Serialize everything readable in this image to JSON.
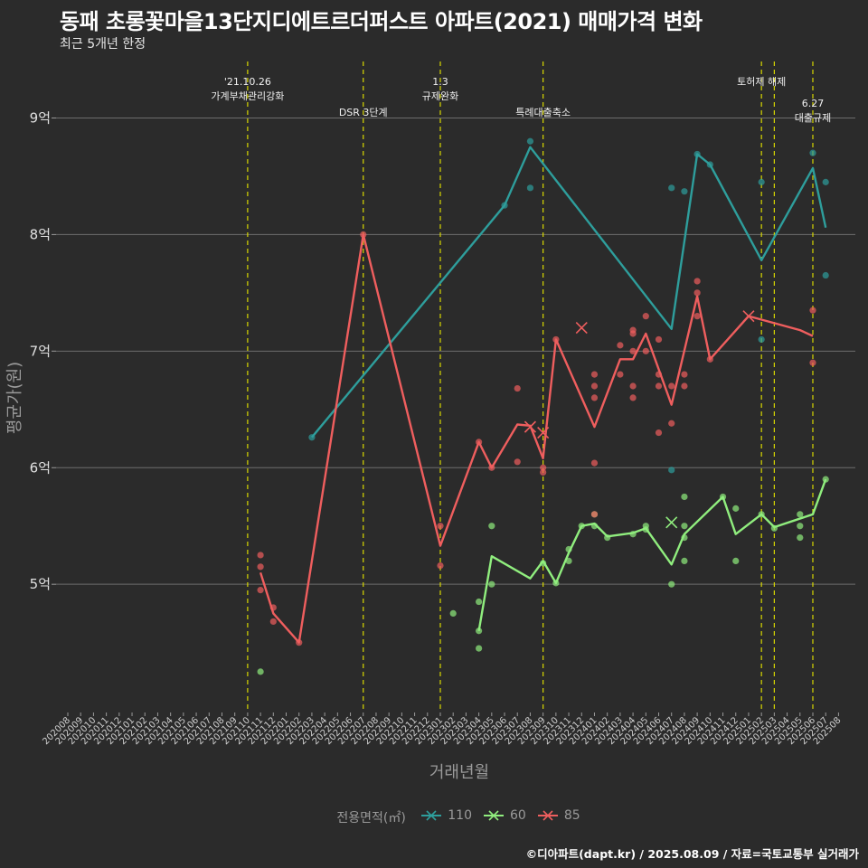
{
  "chart_data": {
    "type": "line",
    "title": "동패 초롱꽃마을13단지디에트르더퍼스트 아파트(2021) 매매가격 변화",
    "subtitle": "최근 5개년 한정",
    "xlabel": "거래년월",
    "ylabel": "평균가(원)",
    "ylim": [
      3.9,
      9.5
    ],
    "y_ticks": [
      5,
      6,
      7,
      8,
      9
    ],
    "y_tick_labels": [
      "5억",
      "6억",
      "7억",
      "8억",
      "9억"
    ],
    "grid": true,
    "x_categories": [
      "202008",
      "202009",
      "202010",
      "202011",
      "202012",
      "202101",
      "202102",
      "202103",
      "202104",
      "202105",
      "202106",
      "202107",
      "202108",
      "202109",
      "202110",
      "202111",
      "202112",
      "202201",
      "202202",
      "202203",
      "202204",
      "202205",
      "202206",
      "202207",
      "202208",
      "202209",
      "202210",
      "202211",
      "202212",
      "202301",
      "202302",
      "202303",
      "202304",
      "202305",
      "202306",
      "202307",
      "202308",
      "202309",
      "202310",
      "202311",
      "202312",
      "202401",
      "202402",
      "202403",
      "202404",
      "202405",
      "202406",
      "202407",
      "202408",
      "202409",
      "202410",
      "202411",
      "202412",
      "202501",
      "202502",
      "202503",
      "202504",
      "202505",
      "202506",
      "202507",
      "202508"
    ],
    "legend": {
      "title": "전용면적(㎡)",
      "position": "bottom"
    },
    "annotations": [
      {
        "x": "202110",
        "lines": [
          "'21.10.26",
          "가계부채관리강화"
        ],
        "row": 1
      },
      {
        "x": "202207",
        "lines": [
          "DSR 3단계"
        ],
        "row": 2
      },
      {
        "x": "202301",
        "lines": [
          "1.3",
          "규제완화"
        ],
        "row": 1
      },
      {
        "x": "202309",
        "lines": [
          "특례대출축소"
        ],
        "row": 2
      },
      {
        "x": "202502",
        "lines": [
          "토허제 해제"
        ],
        "row": 1
      },
      {
        "x": "202503",
        "lines": [],
        "row": 0
      },
      {
        "x": "202506",
        "lines": [
          "6.27",
          "대출규제"
        ],
        "row": 3
      }
    ],
    "series": [
      {
        "name": "110",
        "color": "#2e9e9c",
        "line": [
          [
            "202203",
            6.26
          ],
          [
            "202306",
            8.25
          ],
          [
            "202308",
            8.75
          ],
          [
            "202407",
            7.19
          ],
          [
            "202409",
            8.69
          ],
          [
            "202410",
            8.6
          ],
          [
            "202502",
            7.78
          ],
          [
            "202506",
            8.57
          ],
          [
            "202507",
            8.06
          ]
        ],
        "points": [
          [
            "202203",
            6.26
          ],
          [
            "202306",
            8.25
          ],
          [
            "202308",
            8.8
          ],
          [
            "202308",
            8.4
          ],
          [
            "202407",
            8.4
          ],
          [
            "202407",
            5.98
          ],
          [
            "202408",
            8.37
          ],
          [
            "202409",
            8.69
          ],
          [
            "202410",
            8.6
          ],
          [
            "202502",
            8.45
          ],
          [
            "202502",
            7.1
          ],
          [
            "202506",
            8.7
          ],
          [
            "202507",
            8.45
          ],
          [
            "202507",
            7.65
          ]
        ],
        "x_marks": []
      },
      {
        "name": "60",
        "color": "#90ee7e",
        "line": [
          [
            "202304",
            4.6
          ],
          [
            "202305",
            5.24
          ],
          [
            "202308",
            5.05
          ],
          [
            "202309",
            5.2
          ],
          [
            "202310",
            5.01
          ],
          [
            "202311",
            5.27
          ],
          [
            "202312",
            5.5
          ],
          [
            "202401",
            5.52
          ],
          [
            "202402",
            5.41
          ],
          [
            "202404",
            5.44
          ],
          [
            "202405",
            5.48
          ],
          [
            "202407",
            5.17
          ],
          [
            "202408",
            5.43
          ],
          [
            "202411",
            5.75
          ],
          [
            "202412",
            5.43
          ],
          [
            "202502",
            5.6
          ],
          [
            "202503",
            5.49
          ],
          [
            "202506",
            5.6
          ],
          [
            "202507",
            5.9
          ]
        ],
        "points": [
          [
            "202111",
            4.25
          ],
          [
            "202302",
            4.75
          ],
          [
            "202304",
            4.85
          ],
          [
            "202304",
            4.6
          ],
          [
            "202304",
            4.45
          ],
          [
            "202305",
            5.5
          ],
          [
            "202305",
            5.0
          ],
          [
            "202309",
            5.18
          ],
          [
            "202310",
            5.01
          ],
          [
            "202311",
            5.3
          ],
          [
            "202311",
            5.2
          ],
          [
            "202312",
            5.5
          ],
          [
            "202401",
            5.5
          ],
          [
            "202401",
            5.6
          ],
          [
            "202402",
            5.4
          ],
          [
            "202404",
            5.43
          ],
          [
            "202405",
            5.5
          ],
          [
            "202405",
            5.47
          ],
          [
            "202407",
            5.0
          ],
          [
            "202408",
            5.75
          ],
          [
            "202408",
            5.5
          ],
          [
            "202408",
            5.4
          ],
          [
            "202408",
            5.2
          ],
          [
            "202411",
            5.75
          ],
          [
            "202412",
            5.65
          ],
          [
            "202412",
            5.2
          ],
          [
            "202502",
            5.6
          ],
          [
            "202503",
            5.48
          ],
          [
            "202505",
            5.6
          ],
          [
            "202505",
            5.5
          ],
          [
            "202505",
            5.4
          ],
          [
            "202507",
            5.9
          ]
        ],
        "x_marks": [
          [
            "202407",
            5.53
          ]
        ]
      },
      {
        "name": "85",
        "color": "#ef5e5e",
        "line": [
          [
            "202111",
            5.1
          ],
          [
            "202112",
            4.75
          ],
          [
            "202202",
            4.5
          ],
          [
            "202207",
            8.0
          ],
          [
            "202301",
            5.33
          ],
          [
            "202304",
            6.22
          ],
          [
            "202305",
            6.0
          ],
          [
            "202307",
            6.37
          ],
          [
            "202308",
            6.36
          ],
          [
            "202309",
            6.08
          ],
          [
            "202310",
            7.1
          ],
          [
            "202401",
            6.35
          ],
          [
            "202403",
            6.93
          ],
          [
            "202404",
            6.93
          ],
          [
            "202405",
            7.15
          ],
          [
            "202407",
            6.54
          ],
          [
            "202409",
            7.47
          ],
          [
            "202410",
            6.93
          ],
          [
            "202501",
            7.3
          ],
          [
            "202505",
            7.18
          ],
          [
            "202506",
            7.13
          ]
        ],
        "points": [
          [
            "202111",
            5.25
          ],
          [
            "202111",
            5.15
          ],
          [
            "202111",
            4.95
          ],
          [
            "202112",
            4.8
          ],
          [
            "202112",
            4.68
          ],
          [
            "202202",
            4.5
          ],
          [
            "202207",
            8.0
          ],
          [
            "202301",
            5.5
          ],
          [
            "202301",
            5.16
          ],
          [
            "202304",
            6.22
          ],
          [
            "202305",
            6.0
          ],
          [
            "202307",
            6.68
          ],
          [
            "202307",
            6.05
          ],
          [
            "202309",
            6.0
          ],
          [
            "202309",
            5.96
          ],
          [
            "202310",
            7.1
          ],
          [
            "202401",
            6.8
          ],
          [
            "202401",
            6.7
          ],
          [
            "202401",
            6.6
          ],
          [
            "202401",
            6.04
          ],
          [
            "202401",
            5.6
          ],
          [
            "202403",
            7.05
          ],
          [
            "202403",
            6.8
          ],
          [
            "202404",
            7.18
          ],
          [
            "202404",
            7.15
          ],
          [
            "202404",
            7.0
          ],
          [
            "202404",
            6.7
          ],
          [
            "202404",
            6.6
          ],
          [
            "202405",
            7.3
          ],
          [
            "202405",
            7.0
          ],
          [
            "202406",
            7.1
          ],
          [
            "202406",
            6.8
          ],
          [
            "202406",
            6.7
          ],
          [
            "202406",
            6.3
          ],
          [
            "202407",
            6.7
          ],
          [
            "202407",
            6.38
          ],
          [
            "202408",
            6.8
          ],
          [
            "202408",
            6.7
          ],
          [
            "202409",
            7.6
          ],
          [
            "202409",
            7.5
          ],
          [
            "202409",
            7.3
          ],
          [
            "202410",
            6.93
          ],
          [
            "202506",
            7.35
          ],
          [
            "202506",
            6.9
          ]
        ],
        "x_marks": [
          [
            "202312",
            7.2
          ],
          [
            "202308",
            6.35
          ],
          [
            "202309",
            6.3
          ],
          [
            "202501",
            7.3
          ]
        ]
      }
    ]
  },
  "caption": "©디아파트(dapt.kr) / 2025.08.09 / 자료=국토교통부 실거래가"
}
